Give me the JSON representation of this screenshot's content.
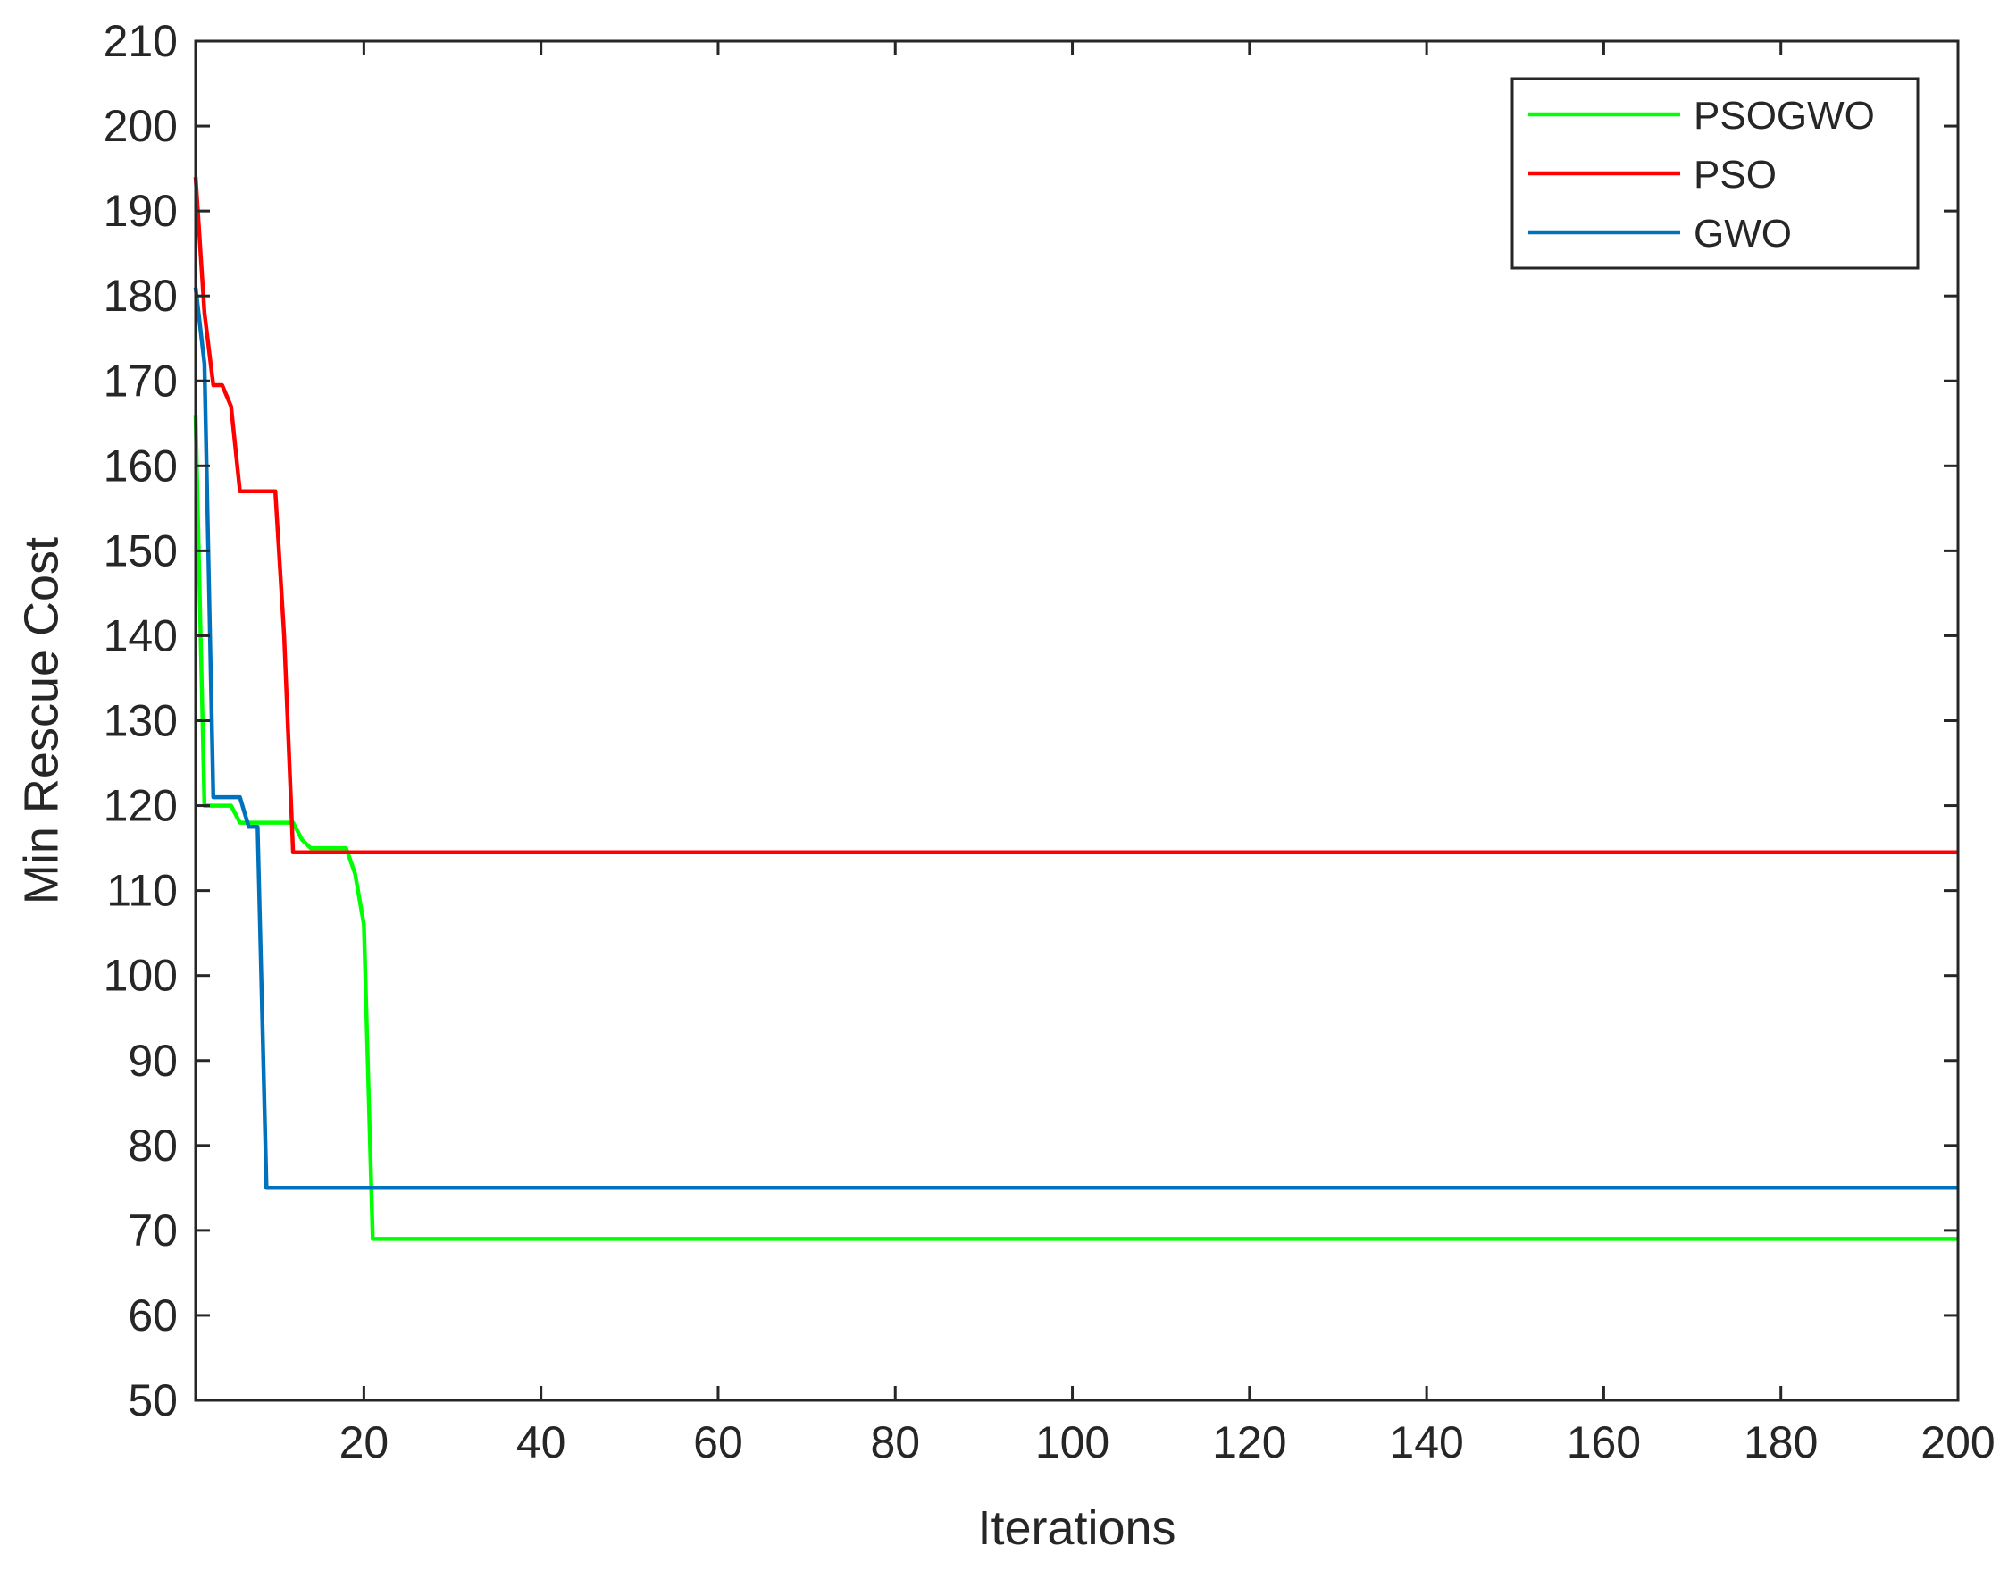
{
  "chart_data": {
    "type": "line",
    "xlabel": "Iterations",
    "ylabel": "Min Rescue Cost",
    "xlim": [
      1,
      200
    ],
    "ylim": [
      50,
      210
    ],
    "xticks": [
      20,
      40,
      60,
      80,
      100,
      120,
      140,
      160,
      180,
      200
    ],
    "yticks": [
      50,
      60,
      70,
      80,
      90,
      100,
      110,
      120,
      130,
      140,
      150,
      160,
      170,
      180,
      190,
      200,
      210
    ],
    "grid": false,
    "legend_position": "top-right",
    "series": [
      {
        "name": "PSOGWO",
        "color": "#00ff00",
        "points": [
          [
            1,
            166
          ],
          [
            2,
            120
          ],
          [
            3,
            120
          ],
          [
            4,
            120
          ],
          [
            5,
            120
          ],
          [
            6,
            118
          ],
          [
            7,
            118
          ],
          [
            8,
            118
          ],
          [
            9,
            118
          ],
          [
            10,
            118
          ],
          [
            11,
            118
          ],
          [
            12,
            118
          ],
          [
            13,
            116
          ],
          [
            14,
            115
          ],
          [
            15,
            115
          ],
          [
            16,
            115
          ],
          [
            17,
            115
          ],
          [
            18,
            115
          ],
          [
            19,
            112
          ],
          [
            20,
            106
          ],
          [
            21,
            69
          ],
          [
            22,
            69
          ],
          [
            200,
            69
          ]
        ]
      },
      {
        "name": "PSO",
        "color": "#ff0000",
        "points": [
          [
            1,
            194
          ],
          [
            2,
            178
          ],
          [
            3,
            169.5
          ],
          [
            4,
            169.5
          ],
          [
            5,
            167
          ],
          [
            6,
            157
          ],
          [
            7,
            157
          ],
          [
            8,
            157
          ],
          [
            9,
            157
          ],
          [
            10,
            157
          ],
          [
            11,
            140
          ],
          [
            12,
            114.5
          ],
          [
            200,
            114.5
          ]
        ]
      },
      {
        "name": "GWO",
        "color": "#0072bd",
        "points": [
          [
            1,
            181
          ],
          [
            2,
            172
          ],
          [
            3,
            121
          ],
          [
            4,
            121
          ],
          [
            5,
            121
          ],
          [
            6,
            121
          ],
          [
            7,
            117.5
          ],
          [
            8,
            117.5
          ],
          [
            9,
            75
          ],
          [
            10,
            75
          ],
          [
            200,
            75
          ]
        ]
      }
    ]
  }
}
